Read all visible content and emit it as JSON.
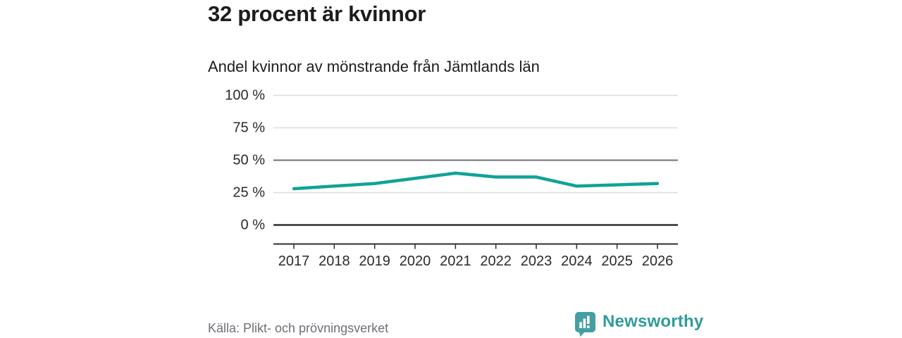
{
  "header": {
    "title": "32 procent är kvinnor",
    "subtitle": "Andel kvinnor av mönstrande från Jämtlands län"
  },
  "chart_data": {
    "type": "line",
    "title": "32 procent är kvinnor",
    "subtitle": "Andel kvinnor av mönstrande från Jämtlands län",
    "categories": [
      "2017",
      "2018",
      "2019",
      "2020",
      "2021",
      "2022",
      "2023",
      "2024",
      "2025",
      "2026"
    ],
    "series": [
      {
        "name": "Andel kvinnor av mönstrande",
        "values": [
          28,
          30,
          32,
          36,
          40,
          37,
          37,
          30,
          31,
          32
        ]
      }
    ],
    "xlabel": "",
    "ylabel": "",
    "ylim": [
      0,
      100
    ],
    "yticks": [
      0,
      25,
      50,
      75,
      100
    ],
    "ytick_suffix": " %",
    "grid": true,
    "legend": false,
    "gridline_emphasis": {
      "dark": 0,
      "mid": 50
    }
  },
  "footer": {
    "source": "Källa: Plikt- och prövningsverket",
    "brand": "Newsworthy"
  },
  "colors": {
    "line_teal": "#10a396",
    "brand_teal": "#2f9c99",
    "icon_teal": "#459fa2",
    "grid_light": "#dcdcdc",
    "grid_mid": "#6e6e78",
    "axis_dark": "#2e2e2e",
    "tick_text": "#2a2a2a",
    "text_dark": "#1c1c1c",
    "text_gray": "#6d7076"
  }
}
